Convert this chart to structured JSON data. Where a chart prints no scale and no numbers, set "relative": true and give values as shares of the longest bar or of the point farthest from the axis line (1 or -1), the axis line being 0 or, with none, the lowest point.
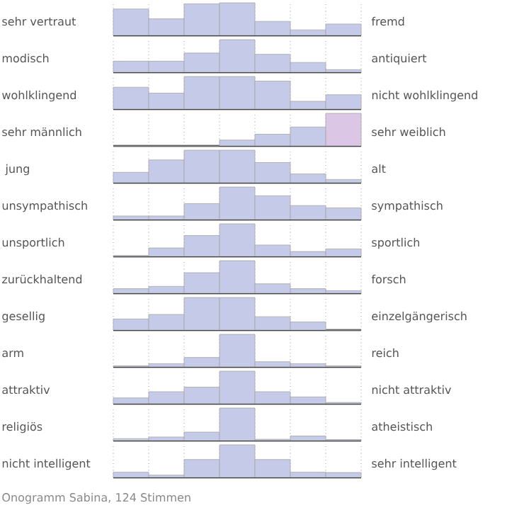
{
  "chart_data": [
    {
      "type": "bar",
      "relative": true,
      "grid": "x",
      "color": "#c5cae9",
      "ylabel": "sehr vertraut",
      "y2label": "fremd",
      "categories": [
        null,
        null,
        null,
        null,
        null,
        null,
        null
      ],
      "values": [
        0.81,
        0.51,
        0.97,
        1,
        0.43,
        0.17,
        0.35
      ]
    },
    {
      "type": "bar",
      "relative": true,
      "grid": "x",
      "color": "#c5cae9",
      "ylabel": "modisch",
      "y2label": "antiquiert",
      "categories": [
        null,
        null,
        null,
        null,
        null,
        null,
        null
      ],
      "values": [
        0.34,
        0.34,
        0.59,
        1,
        0.55,
        0.3,
        0.08
      ]
    },
    {
      "type": "bar",
      "relative": true,
      "grid": "x",
      "color": "#c5cae9",
      "ylabel": "wohlklingend",
      "y2label": "nicht wohlklingend",
      "categories": [
        null,
        null,
        null,
        null,
        null,
        null,
        null
      ],
      "values": [
        0.67,
        0.49,
        1,
        1,
        0.86,
        0.24,
        0.44
      ]
    },
    {
      "type": "bar",
      "relative": true,
      "grid": "x",
      "colors": [
        "#c5cae9",
        "#c5cae9",
        "#c5cae9",
        "#c5cae9",
        "#c5cae9",
        "#c5cae9",
        "#dcc6e6"
      ],
      "ylabel": "sehr männlich",
      "y2label": "sehr weiblich",
      "categories": [
        null,
        null,
        null,
        null,
        null,
        null,
        null
      ],
      "values": [
        0,
        0,
        0,
        0.18,
        0.36,
        0.58,
        1
      ]
    },
    {
      "type": "bar",
      "relative": true,
      "grid": "x",
      "color": "#c5cae9",
      "ylabel": " jung",
      "y2label": "alt",
      "categories": [
        null,
        null,
        null,
        null,
        null,
        null,
        null
      ],
      "values": [
        0.32,
        0.7,
        1,
        1,
        0.62,
        0.27,
        0.1
      ]
    },
    {
      "type": "bar",
      "relative": true,
      "grid": "x",
      "color": "#c5cae9",
      "ylabel": "unsympathisch",
      "y2label": "sympathisch",
      "categories": [
        null,
        null,
        null,
        null,
        null,
        null,
        null
      ],
      "values": [
        0.11,
        0.11,
        0.49,
        1,
        0.73,
        0.43,
        0.36
      ]
    },
    {
      "type": "bar",
      "relative": true,
      "grid": "x",
      "color": "#c5cae9",
      "ylabel": "unsportlich",
      "y2label": "sportlich",
      "categories": [
        null,
        null,
        null,
        null,
        null,
        null,
        null
      ],
      "values": [
        0.02,
        0.26,
        0.64,
        1,
        0.35,
        0.15,
        0.23
      ]
    },
    {
      "type": "bar",
      "relative": true,
      "grid": "x",
      "color": "#c5cae9",
      "ylabel": "zurückhaltend",
      "y2label": "forsch",
      "categories": [
        null,
        null,
        null,
        null,
        null,
        null,
        null
      ],
      "values": [
        0.14,
        0.21,
        0.63,
        1,
        0.29,
        0.14,
        0.08
      ]
    },
    {
      "type": "bar",
      "relative": true,
      "grid": "x",
      "color": "#c5cae9",
      "ylabel": "gesellig",
      "y2label": "einzelgängerisch",
      "categories": [
        null,
        null,
        null,
        null,
        null,
        null,
        null
      ],
      "values": [
        0.34,
        0.48,
        1,
        1,
        0.41,
        0.25,
        0
      ]
    },
    {
      "type": "bar",
      "relative": true,
      "grid": "x",
      "color": "#c5cae9",
      "ylabel": "arm",
      "y2label": "reich",
      "categories": [
        null,
        null,
        null,
        null,
        null,
        null,
        null
      ],
      "values": [
        0.03,
        0.1,
        0.29,
        1,
        0.16,
        0.1,
        0.03
      ]
    },
    {
      "type": "bar",
      "relative": true,
      "grid": "x",
      "color": "#c5cae9",
      "ylabel": "attraktiv",
      "y2label": "nicht attraktiv",
      "categories": [
        null,
        null,
        null,
        null,
        null,
        null,
        null
      ],
      "values": [
        0.18,
        0.37,
        0.51,
        1,
        0.37,
        0.21,
        0.04
      ]
    },
    {
      "type": "bar",
      "relative": true,
      "grid": "x",
      "color": "#c5cae9",
      "ylabel": "religiös",
      "y2label": "atheistisch",
      "categories": [
        null,
        null,
        null,
        null,
        null,
        null,
        null
      ],
      "values": [
        0.06,
        0.11,
        0.26,
        1,
        0.04,
        0.14,
        0.03
      ]
    },
    {
      "type": "bar",
      "relative": true,
      "grid": "x",
      "color": "#c5cae9",
      "ylabel": "nicht intelligent",
      "y2label": "sehr intelligent",
      "categories": [
        null,
        null,
        null,
        null,
        null,
        null,
        null
      ],
      "values": [
        0.16,
        0.07,
        0.55,
        1,
        0.55,
        0.16,
        0.15
      ],
      "annotations": [
        "Onogramm Sabina, 124 Stimmen"
      ]
    }
  ]
}
